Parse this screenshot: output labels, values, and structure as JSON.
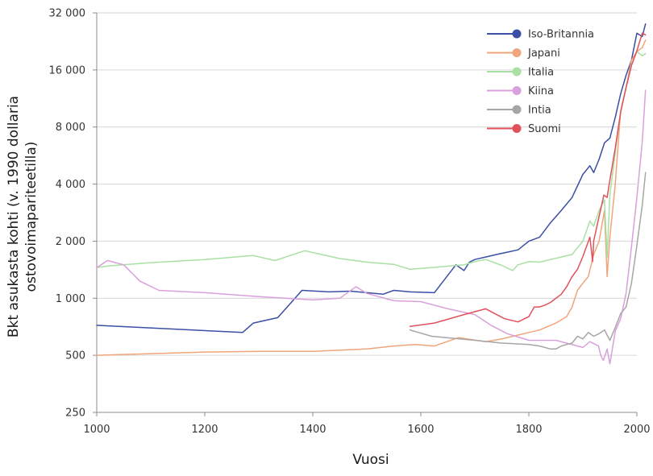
{
  "chart_data": {
    "type": "line",
    "xlabel": "Vuosi",
    "ylabel_line1": "Bkt asukasta kohti (v. 1990 dollaria",
    "ylabel_line2": "ostovoimapariteetilla)",
    "xlim": [
      1000,
      2000
    ],
    "ylim": [
      250,
      32000
    ],
    "yscale": "log2",
    "x_ticks": [
      1000,
      1200,
      1400,
      1600,
      1800,
      2000
    ],
    "x_tick_labels": [
      "1000",
      "1200",
      "1400",
      "1600",
      "1800",
      "2000"
    ],
    "y_ticks": [
      250,
      500,
      1000,
      2000,
      4000,
      8000,
      16000,
      32000
    ],
    "y_tick_labels": [
      "250",
      "500",
      "1 000",
      "2 000",
      "4 000",
      "8 000",
      "16 000",
      "32 000"
    ],
    "grid": "horizontal",
    "legend_position": "top-right",
    "series": [
      {
        "name": "Iso-Britannia",
        "color": "#3a4fa5",
        "x": [
          1000,
          1270,
          1290,
          1335,
          1380,
          1430,
          1470,
          1530,
          1550,
          1580,
          1625,
          1665,
          1680,
          1690,
          1700,
          1720,
          1740,
          1760,
          1780,
          1800,
          1820,
          1840,
          1860,
          1880,
          1900,
          1913,
          1920,
          1930,
          1940,
          1950,
          1960,
          1970,
          1980,
          1990,
          2000,
          2010,
          2016
        ],
        "y": [
          720,
          660,
          740,
          790,
          1100,
          1080,
          1090,
          1050,
          1100,
          1080,
          1070,
          1500,
          1400,
          1550,
          1600,
          1650,
          1700,
          1750,
          1800,
          2000,
          2100,
          2500,
          2900,
          3400,
          4500,
          5000,
          4600,
          5400,
          6600,
          7000,
          9000,
          12000,
          15000,
          18000,
          25000,
          24000,
          28000
        ]
      },
      {
        "name": "Japani",
        "color": "#f0a57a",
        "x": [
          1000,
          1100,
          1200,
          1300,
          1400,
          1500,
          1550,
          1590,
          1625,
          1670,
          1720,
          1750,
          1800,
          1820,
          1850,
          1870,
          1880,
          1890,
          1900,
          1910,
          1920,
          1930,
          1940,
          1945,
          1950,
          1960,
          1970,
          1980,
          1990,
          2000,
          2010,
          2016
        ],
        "y": [
          500,
          510,
          520,
          525,
          525,
          540,
          560,
          570,
          560,
          620,
          590,
          610,
          660,
          680,
          740,
          800,
          900,
          1100,
          1200,
          1300,
          1700,
          2000,
          2900,
          1300,
          2100,
          4000,
          9800,
          13000,
          18000,
          20000,
          21000,
          23000
        ]
      },
      {
        "name": "Italia",
        "color": "#a9e0a4",
        "x": [
          1000,
          1020,
          1100,
          1200,
          1290,
          1330,
          1385,
          1450,
          1500,
          1550,
          1580,
          1620,
          1680,
          1700,
          1720,
          1750,
          1770,
          1780,
          1800,
          1820,
          1840,
          1860,
          1880,
          1900,
          1913,
          1920,
          1930,
          1940,
          1945,
          1950,
          1960,
          1970,
          1980,
          1990,
          2000,
          2010,
          2016
        ],
        "y": [
          1450,
          1480,
          1540,
          1600,
          1680,
          1580,
          1780,
          1620,
          1550,
          1510,
          1420,
          1450,
          1500,
          1560,
          1600,
          1490,
          1400,
          1500,
          1560,
          1550,
          1600,
          1650,
          1700,
          2000,
          2550,
          2400,
          2900,
          3300,
          1650,
          3500,
          5900,
          9700,
          13000,
          17000,
          20000,
          19000,
          19500
        ]
      },
      {
        "name": "Kiina",
        "color": "#d9a0dc",
        "x": [
          1000,
          1020,
          1050,
          1080,
          1115,
          1200,
          1300,
          1400,
          1450,
          1480,
          1500,
          1550,
          1600,
          1650,
          1700,
          1730,
          1760,
          1800,
          1820,
          1850,
          1870,
          1890,
          1900,
          1913,
          1929,
          1933,
          1938,
          1945,
          1950,
          1960,
          1970,
          1980,
          1990,
          2000,
          2010,
          2016
        ],
        "y": [
          1450,
          1580,
          1500,
          1230,
          1100,
          1070,
          1020,
          980,
          1000,
          1150,
          1060,
          970,
          960,
          880,
          820,
          720,
          650,
          600,
          600,
          600,
          580,
          560,
          550,
          590,
          560,
          500,
          470,
          540,
          450,
          670,
          780,
          1060,
          1870,
          3400,
          6700,
          12500
        ]
      },
      {
        "name": "Intia",
        "color": "#a6a6a6",
        "x": [
          1580,
          1620,
          1700,
          1750,
          1800,
          1820,
          1840,
          1850,
          1860,
          1870,
          1880,
          1890,
          1900,
          1910,
          1920,
          1930,
          1940,
          1950,
          1960,
          1970,
          1980,
          1990,
          2000,
          2010,
          2016
        ],
        "y": [
          680,
          630,
          600,
          580,
          570,
          560,
          540,
          540,
          560,
          570,
          580,
          630,
          610,
          660,
          630,
          650,
          680,
          600,
          700,
          830,
          900,
          1200,
          1900,
          3100,
          4600
        ]
      },
      {
        "name": "Suomi",
        "color": "#e1515c",
        "x": [
          1580,
          1625,
          1680,
          1720,
          1755,
          1780,
          1800,
          1810,
          1820,
          1830,
          1840,
          1860,
          1870,
          1880,
          1890,
          1900,
          1913,
          1918,
          1920,
          1930,
          1939,
          1945,
          1950,
          1960,
          1970,
          1980,
          1990,
          2000,
          2010,
          2016
        ],
        "y": [
          710,
          740,
          820,
          880,
          780,
          750,
          800,
          900,
          900,
          920,
          950,
          1050,
          1150,
          1300,
          1420,
          1660,
          2100,
          1560,
          2000,
          2700,
          3500,
          3400,
          4200,
          6200,
          9600,
          12900,
          16900,
          20200,
          25000,
          24500
        ]
      }
    ]
  }
}
